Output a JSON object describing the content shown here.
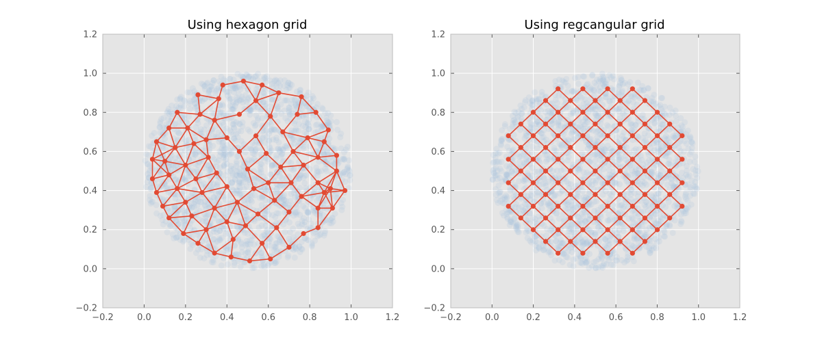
{
  "chart_data": [
    {
      "type": "scatter",
      "title": "Using hexagon grid",
      "xlim": [
        -0.2,
        1.2
      ],
      "ylim": [
        -0.2,
        1.2
      ],
      "xticks": [
        "−0.2",
        "0.0",
        "0.2",
        "0.4",
        "0.6",
        "0.8",
        "1.0",
        "1.2"
      ],
      "yticks": [
        "−0.2",
        "0.0",
        "0.2",
        "0.4",
        "0.6",
        "0.8",
        "1.0",
        "1.2"
      ],
      "grid": true,
      "background_color": "#e5e5e5",
      "data_cloud": {
        "center": [
          0.5,
          0.5
        ],
        "radius": 0.5,
        "color": "#a6c4dc",
        "alpha": 0.18
      },
      "node_color": "#e24a33",
      "edge_color": "#e24a33",
      "layout": "hexagon",
      "nodes": [
        [
          0.04,
          0.46
        ],
        [
          0.04,
          0.56
        ],
        [
          0.06,
          0.39
        ],
        [
          0.06,
          0.65
        ],
        [
          0.09,
          0.32
        ],
        [
          0.1,
          0.55
        ],
        [
          0.12,
          0.26
        ],
        [
          0.12,
          0.48
        ],
        [
          0.12,
          0.72
        ],
        [
          0.16,
          0.41
        ],
        [
          0.15,
          0.62
        ],
        [
          0.16,
          0.8
        ],
        [
          0.19,
          0.18
        ],
        [
          0.2,
          0.34
        ],
        [
          0.2,
          0.53
        ],
        [
          0.21,
          0.72
        ],
        [
          0.23,
          0.27
        ],
        [
          0.25,
          0.46
        ],
        [
          0.24,
          0.64
        ],
        [
          0.26,
          0.89
        ],
        [
          0.26,
          0.13
        ],
        [
          0.27,
          0.79
        ],
        [
          0.28,
          0.39
        ],
        [
          0.3,
          0.2
        ],
        [
          0.31,
          0.57
        ],
        [
          0.3,
          0.66
        ],
        [
          0.34,
          0.08
        ],
        [
          0.34,
          0.31
        ],
        [
          0.35,
          0.49
        ],
        [
          0.34,
          0.76
        ],
        [
          0.36,
          0.87
        ],
        [
          0.38,
          0.94
        ],
        [
          0.4,
          0.42
        ],
        [
          0.4,
          0.24
        ],
        [
          0.4,
          0.67
        ],
        [
          0.42,
          0.06
        ],
        [
          0.43,
          0.15
        ],
        [
          0.45,
          0.34
        ],
        [
          0.46,
          0.6
        ],
        [
          0.46,
          0.79
        ],
        [
          0.48,
          0.96
        ],
        [
          0.49,
          0.22
        ],
        [
          0.5,
          0.51
        ],
        [
          0.51,
          0.04
        ],
        [
          0.53,
          0.41
        ],
        [
          0.54,
          0.86
        ],
        [
          0.54,
          0.68
        ],
        [
          0.55,
          0.28
        ],
        [
          0.57,
          0.13
        ],
        [
          0.57,
          0.94
        ],
        [
          0.59,
          0.59
        ],
        [
          0.6,
          0.44
        ],
        [
          0.61,
          0.05
        ],
        [
          0.61,
          0.78
        ],
        [
          0.63,
          0.35
        ],
        [
          0.64,
          0.21
        ],
        [
          0.65,
          0.9
        ],
        [
          0.66,
          0.52
        ],
        [
          0.67,
          0.7
        ],
        [
          0.7,
          0.11
        ],
        [
          0.7,
          0.29
        ],
        [
          0.71,
          0.44
        ],
        [
          0.72,
          0.6
        ],
        [
          0.74,
          0.79
        ],
        [
          0.76,
          0.88
        ],
        [
          0.76,
          0.37
        ],
        [
          0.77,
          0.18
        ],
        [
          0.77,
          0.53
        ],
        [
          0.79,
          0.67
        ],
        [
          0.83,
          0.8
        ],
        [
          0.84,
          0.44
        ],
        [
          0.84,
          0.21
        ],
        [
          0.84,
          0.31
        ],
        [
          0.84,
          0.57
        ],
        [
          0.87,
          0.65
        ],
        [
          0.87,
          0.39
        ],
        [
          0.89,
          0.71
        ],
        [
          0.9,
          0.41
        ],
        [
          0.91,
          0.31
        ],
        [
          0.93,
          0.5
        ],
        [
          0.93,
          0.58
        ],
        [
          0.97,
          0.4
        ]
      ]
    },
    {
      "type": "scatter",
      "title": "Using regcangular grid",
      "xlim": [
        -0.2,
        1.2
      ],
      "ylim": [
        -0.2,
        1.2
      ],
      "xticks": [
        "−0.2",
        "0.0",
        "0.2",
        "0.4",
        "0.6",
        "0.8",
        "1.0",
        "1.2"
      ],
      "yticks": [
        "−0.2",
        "0.0",
        "0.2",
        "0.4",
        "0.6",
        "0.8",
        "1.0",
        "1.2"
      ],
      "grid": true,
      "background_color": "#e5e5e5",
      "data_cloud": {
        "center": [
          0.5,
          0.5
        ],
        "radius": 0.5,
        "color": "#a6c4dc",
        "alpha": 0.18
      },
      "node_color": "#e24a33",
      "edge_color": "#e24a33",
      "layout": "rectangular",
      "grid_step": 0.085
    }
  ]
}
